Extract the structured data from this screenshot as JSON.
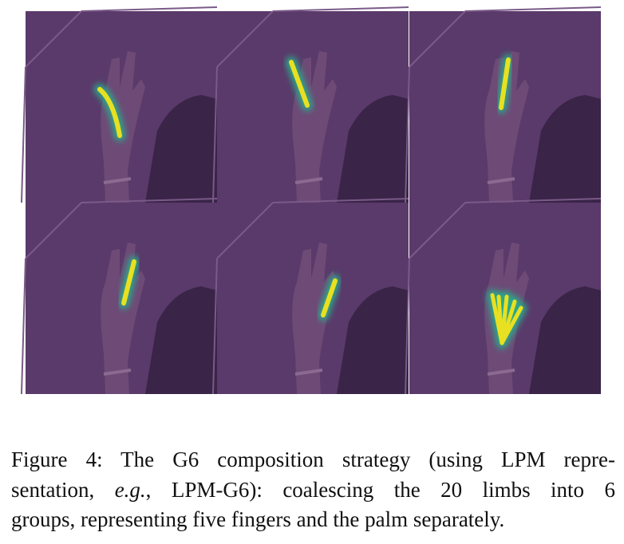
{
  "figure": {
    "caption_lines": [
      [
        "Figure 4: The G6 composition strategy (using LPM repre-"
      ],
      [
        "sentation, ",
        "e.g.",
        ", LPM-G6): coalescing the 20 limbs into 6"
      ],
      [
        "groups, representing five fingers and the palm separately."
      ]
    ]
  }
}
